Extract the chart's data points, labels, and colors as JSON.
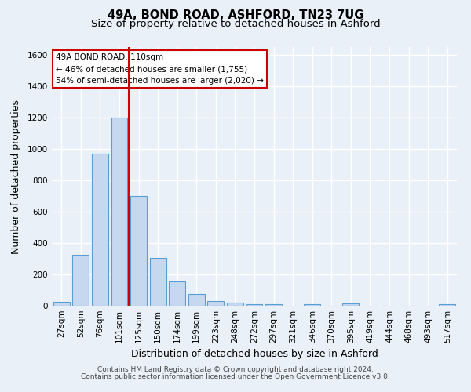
{
  "title": "49A, BOND ROAD, ASHFORD, TN23 7UG",
  "subtitle": "Size of property relative to detached houses in Ashford",
  "xlabel": "Distribution of detached houses by size in Ashford",
  "ylabel": "Number of detached properties",
  "footnote1": "Contains HM Land Registry data © Crown copyright and database right 2024.",
  "footnote2": "Contains public sector information licensed under the Open Government Licence v3.0.",
  "bar_labels": [
    "27sqm",
    "52sqm",
    "76sqm",
    "101sqm",
    "125sqm",
    "150sqm",
    "174sqm",
    "199sqm",
    "223sqm",
    "248sqm",
    "272sqm",
    "297sqm",
    "321sqm",
    "346sqm",
    "370sqm",
    "395sqm",
    "419sqm",
    "444sqm",
    "468sqm",
    "493sqm",
    "517sqm"
  ],
  "bar_values": [
    25,
    325,
    970,
    1200,
    700,
    305,
    155,
    75,
    30,
    20,
    10,
    10,
    0,
    10,
    0,
    15,
    0,
    0,
    0,
    0,
    10
  ],
  "bar_color": "#c5d8f0",
  "bar_edge_color": "#5a9fd4",
  "vline_x_index": 3,
  "vline_color": "#cc0000",
  "annotation_line1": "49A BOND ROAD: 110sqm",
  "annotation_line2": "← 46% of detached houses are smaller (1,755)",
  "annotation_line3": "54% of semi-detached houses are larger (2,020) →",
  "annotation_box_color": "#ffffff",
  "annotation_box_edge": "#cc0000",
  "ylim": [
    0,
    1650
  ],
  "yticks": [
    0,
    200,
    400,
    600,
    800,
    1000,
    1200,
    1400,
    1600
  ],
  "bg_color": "#eaf0f8",
  "plot_bg_color": "#eaf0f8",
  "grid_color": "#ffffff",
  "title_fontsize": 10.5,
  "subtitle_fontsize": 9.5,
  "label_fontsize": 9,
  "tick_fontsize": 7.5,
  "footnote_fontsize": 6.5
}
